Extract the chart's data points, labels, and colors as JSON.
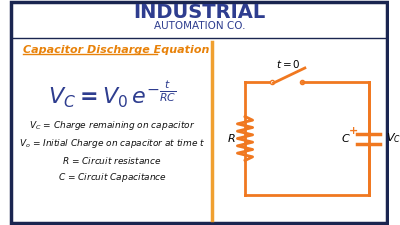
{
  "bg_color": "#ffffff",
  "border_color": "#1a2550",
  "title_line1": "INDUSTRIAL",
  "title_line2": "AUTOMATION CO.",
  "title_color": "#2e3d8f",
  "section_title": "Capacitor Discharge Equation",
  "section_title_color": "#e8820a",
  "equation_color": "#2e3d8f",
  "divider_color": "#f0a030",
  "labels": [
    "$V_C$ = Charge remaining on capacitor",
    "$V_o$ = Initial Charge on capacitor at time t",
    "$R$ = Circuit resistance",
    "$C$ = Circuit Capacitance"
  ],
  "label_color": "#111111",
  "circuit_orange": "#f07820",
  "t0_label": "$t = 0$",
  "R_label": "$R$",
  "C_label": "$C$",
  "VC_label": "$V_C$"
}
